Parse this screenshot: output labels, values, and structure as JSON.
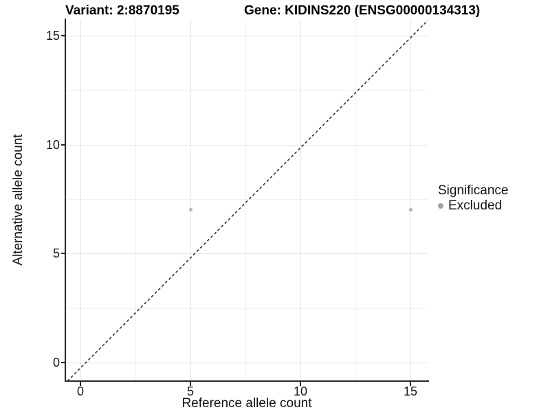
{
  "title": {
    "variant_label": "Variant: 2:8870195",
    "gene_label": "Gene: KIDINS220 (ENSG00000134313)"
  },
  "chart_data": {
    "type": "scatter",
    "title_left": "Variant: 2:8870195",
    "title_right": "Gene: KIDINS220 (ENSG00000134313)",
    "xlabel": "Reference allele count",
    "ylabel": "Alternative allele count",
    "xlim": [
      -0.75,
      15.75
    ],
    "ylim": [
      -0.85,
      15.8
    ],
    "x_ticks": [
      0,
      5,
      10,
      15
    ],
    "y_ticks": [
      0,
      5,
      10,
      15
    ],
    "x_tick_labels": [
      "0",
      "5",
      "10",
      "15"
    ],
    "y_tick_labels_top_to_bottom": [
      "15",
      "10",
      "5",
      "0"
    ],
    "grid": {
      "major": true,
      "minor": true,
      "minor_breaks": [
        2.5,
        7.5,
        12.5
      ]
    },
    "series": [
      {
        "name": "Excluded",
        "color": "#b3b3b3",
        "points": [
          {
            "x": 5,
            "y": 7
          },
          {
            "x": 15,
            "y": 7
          }
        ]
      }
    ],
    "reference_line": {
      "type": "identity y=x",
      "style": "dashed",
      "color": "#1a1a1a"
    },
    "legend": {
      "position": "right",
      "title": "Significance",
      "entries": [
        {
          "label": "Excluded",
          "color": "#a0a0a0"
        }
      ]
    }
  },
  "colors": {
    "background": "#ffffff",
    "grid_major": "#e4e4e4",
    "grid_minor": "#f1f1f1",
    "axis": "#262626",
    "point": "#b3b3b3"
  }
}
